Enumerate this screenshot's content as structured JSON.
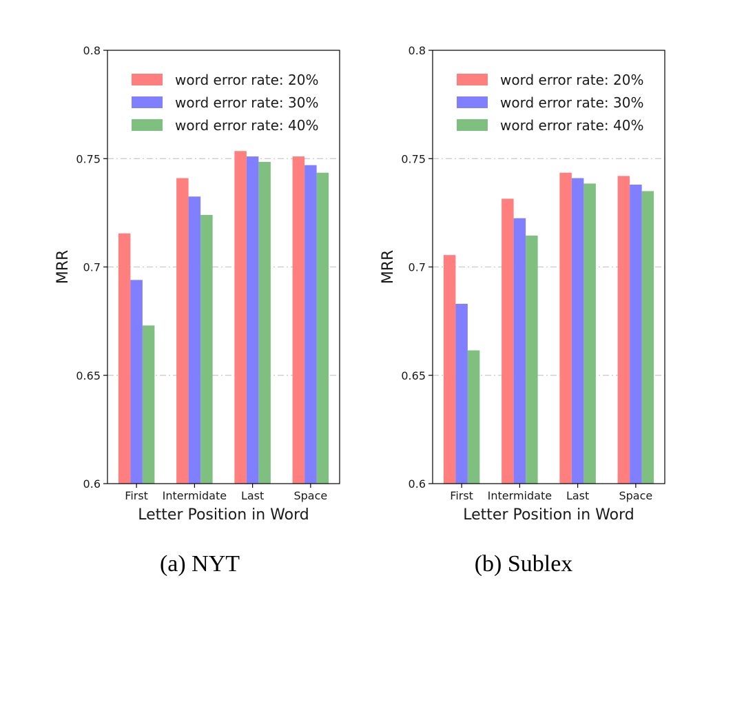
{
  "colors": {
    "series": [
      "#ff7f7f",
      "#7f7fff",
      "#7fbf7f"
    ],
    "grid": "#c8c8c8",
    "axis": "#000000"
  },
  "chart_data": [
    {
      "type": "bar",
      "caption": "(a) NYT",
      "xlabel": "Letter Position in Word",
      "ylabel": "MRR",
      "categories": [
        "First",
        "Intermidate",
        "Last",
        "Space"
      ],
      "ylim": [
        0.6,
        0.8
      ],
      "yticks": [
        0.6,
        0.65,
        0.7,
        0.75,
        0.8
      ],
      "ytick_labels": [
        "0.6",
        "0.65",
        "0.7",
        "0.75",
        "0.8"
      ],
      "grid": true,
      "legend": "top-right",
      "series": [
        {
          "name": "word error rate: 20%",
          "values": [
            0.7155,
            0.741,
            0.7535,
            0.751
          ]
        },
        {
          "name": "word error rate: 30%",
          "values": [
            0.694,
            0.7325,
            0.751,
            0.747
          ]
        },
        {
          "name": "word error rate: 40%",
          "values": [
            0.673,
            0.724,
            0.7485,
            0.7435
          ]
        }
      ]
    },
    {
      "type": "bar",
      "caption": "(b) Sublex",
      "xlabel": "Letter Position in Word",
      "ylabel": "MRR",
      "categories": [
        "First",
        "Intermidate",
        "Last",
        "Space"
      ],
      "ylim": [
        0.6,
        0.8
      ],
      "yticks": [
        0.6,
        0.65,
        0.7,
        0.75,
        0.8
      ],
      "ytick_labels": [
        "0.6",
        "0.65",
        "0.7",
        "0.75",
        "0.8"
      ],
      "grid": true,
      "legend": "top-right",
      "series": [
        {
          "name": "word error rate: 20%",
          "values": [
            0.7055,
            0.7315,
            0.7435,
            0.742
          ]
        },
        {
          "name": "word error rate: 30%",
          "values": [
            0.683,
            0.7225,
            0.741,
            0.738
          ]
        },
        {
          "name": "word error rate: 40%",
          "values": [
            0.6615,
            0.7145,
            0.7385,
            0.735
          ]
        }
      ]
    }
  ]
}
